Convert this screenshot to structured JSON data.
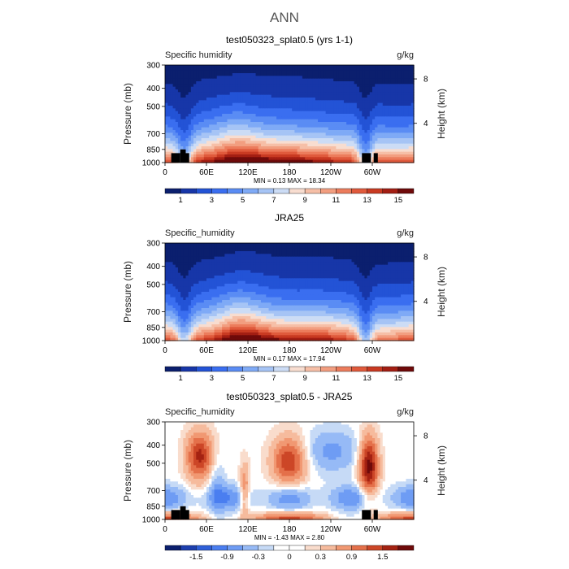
{
  "figure_title": "ANN",
  "chart_data": [
    {
      "type": "heatmap",
      "title": "test050323_splat0.5 (yrs 1-1)",
      "variable": "Specific humidity",
      "units": "g/kg",
      "ylabel": "Pressure (mb)",
      "ylabel_right": "Height (km)",
      "x_ticks": [
        "0",
        "60E",
        "120E",
        "180",
        "120W",
        "60W"
      ],
      "y_ticks": [
        300,
        400,
        500,
        700,
        850,
        1000
      ],
      "height_ticks": [
        "8",
        "4"
      ],
      "stats": "MIN =    0.13   MAX =   18.34",
      "colorbar_labels": [
        "1",
        "3",
        "5",
        "7",
        "9",
        "11",
        "13",
        "15"
      ],
      "colorbar_levels": [
        1,
        2,
        3,
        4,
        5,
        6,
        7,
        8,
        9,
        10,
        11,
        12,
        13,
        14,
        15,
        16
      ],
      "range": [
        0.13,
        18.34
      ]
    },
    {
      "type": "heatmap",
      "title": "JRA25",
      "variable": "Specific_humidity",
      "units": "g/kg",
      "ylabel": "Pressure (mb)",
      "ylabel_right": "Height (km)",
      "x_ticks": [
        "0",
        "60E",
        "120E",
        "180",
        "120W",
        "60W"
      ],
      "y_ticks": [
        300,
        400,
        500,
        700,
        850,
        1000
      ],
      "height_ticks": [
        "8",
        "4"
      ],
      "stats": "MIN =    0.17   MAX =   17.94",
      "colorbar_labels": [
        "1",
        "3",
        "5",
        "7",
        "9",
        "11",
        "13",
        "15"
      ],
      "colorbar_levels": [
        1,
        2,
        3,
        4,
        5,
        6,
        7,
        8,
        9,
        10,
        11,
        12,
        13,
        14,
        15,
        16
      ],
      "range": [
        0.17,
        17.94
      ]
    },
    {
      "type": "heatmap",
      "title": "test050323_splat0.5 - JRA25",
      "variable": "Specific_humidity",
      "units": "g/kg",
      "ylabel": "Pressure (mb)",
      "ylabel_right": "Height (km)",
      "x_ticks": [
        "0",
        "60E",
        "120E",
        "180",
        "120W",
        "60W"
      ],
      "y_ticks": [
        300,
        400,
        500,
        700,
        850,
        1000
      ],
      "height_ticks": [
        "8",
        "4"
      ],
      "stats": "MIN =   -1.43   MAX =    2.80",
      "colorbar_labels": [
        "-1.5",
        "-0.9",
        "-0.3",
        "0",
        "0.3",
        "0.9",
        "1.5"
      ],
      "colorbar_levels": [
        -1.8,
        -1.5,
        -1.2,
        -0.9,
        -0.6,
        -0.3,
        -0.1,
        0,
        0.1,
        0.3,
        0.6,
        0.9,
        1.2,
        1.5,
        1.8
      ],
      "range": [
        -1.43,
        2.8
      ]
    }
  ],
  "palette": [
    "#0b1f6e",
    "#1736a8",
    "#2353d6",
    "#3a6ef0",
    "#5a8cf4",
    "#7faaf6",
    "#a6c4f5",
    "#ccdcf5",
    "#f8ddd0",
    "#f6bfa7",
    "#f29e80",
    "#ec7c5c",
    "#e05a3c",
    "#c93a22",
    "#a31e13",
    "#6f0a0a"
  ],
  "diff_palette": [
    "#0b1f6e",
    "#1d3fae",
    "#2f5fd8",
    "#4a7ef0",
    "#6e9cf4",
    "#96baf6",
    "#c6daf6",
    "#ffffff",
    "#ffffff",
    "#f9dccc",
    "#f6bb9d",
    "#f19872",
    "#e4704a",
    "#cc4627",
    "#a42212",
    "#6f0a0a"
  ]
}
